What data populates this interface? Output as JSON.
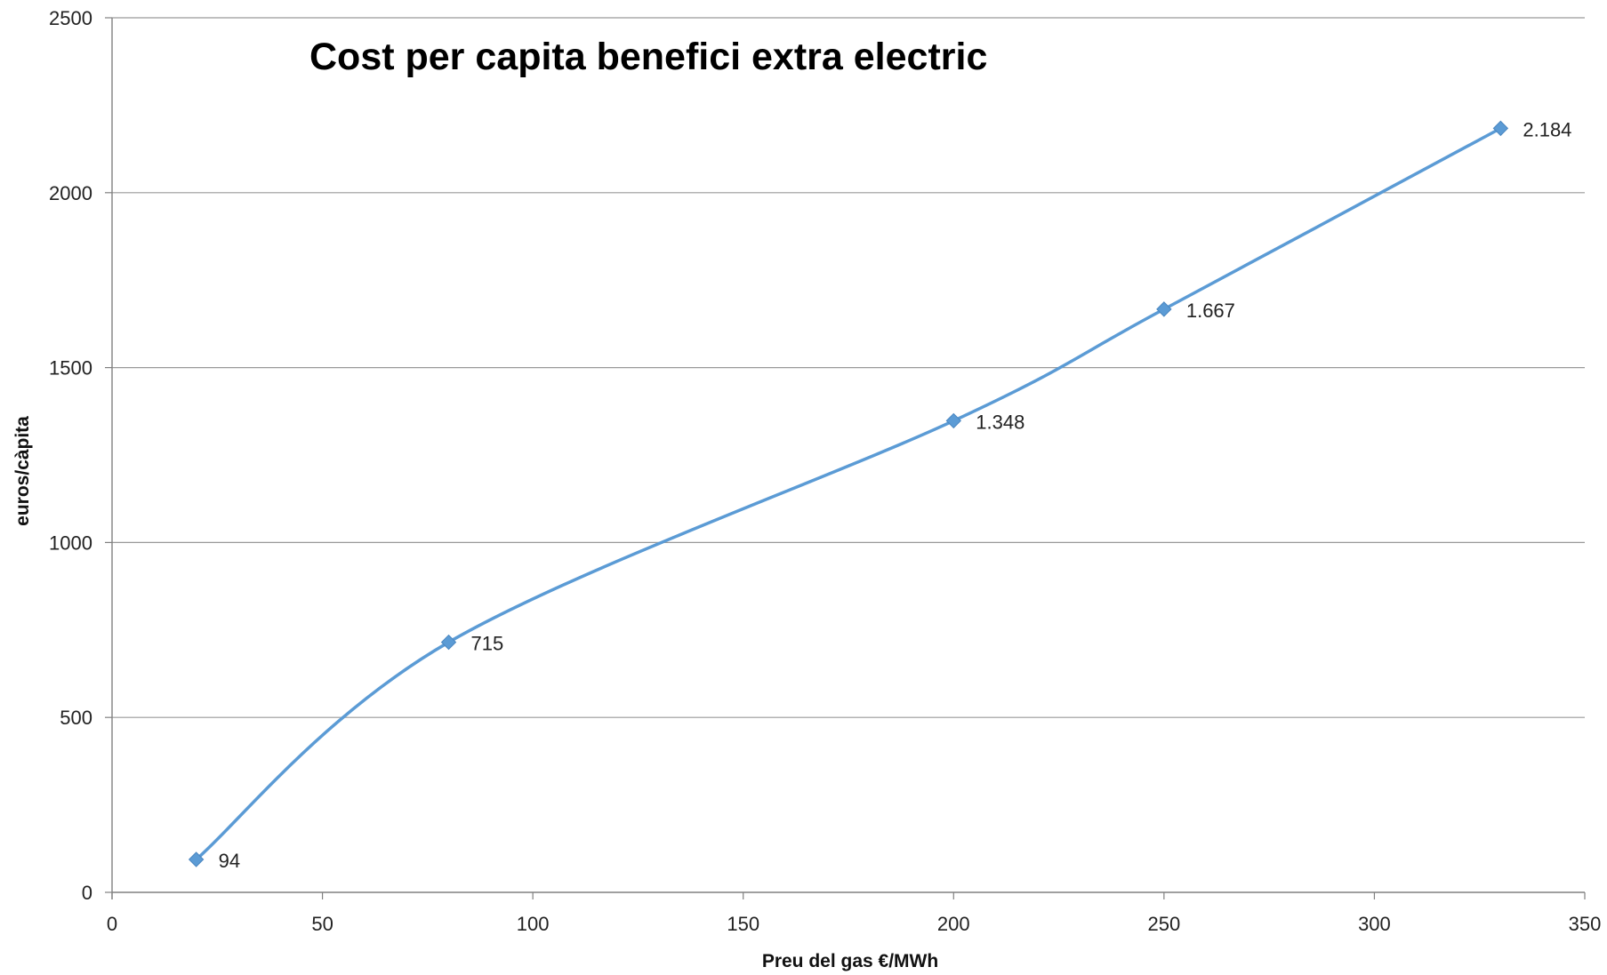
{
  "chart_data": {
    "type": "line",
    "title": "Cost per capita benefici extra electric",
    "xlabel": "Preu del gas €/MWh",
    "ylabel": "euros/càpita",
    "xlim": [
      0,
      350
    ],
    "ylim": [
      0,
      2500
    ],
    "x_ticks": [
      "0",
      "50",
      "100",
      "150",
      "200",
      "250",
      "300",
      "350"
    ],
    "y_ticks": [
      "0",
      "500",
      "1000",
      "1500",
      "2000",
      "2500"
    ],
    "grid": "horizontal",
    "smooth": true,
    "marker": "diamond",
    "series": [
      {
        "x": [
          20,
          80,
          200,
          250,
          330
        ],
        "values": [
          94,
          715,
          1348,
          1667,
          2184
        ],
        "labels": [
          "94",
          "715",
          "1.348",
          "1.667",
          "2.184"
        ]
      }
    ],
    "colors": {
      "series": "#5b9bd5",
      "grid": "#999999",
      "axis": "#808080"
    }
  }
}
